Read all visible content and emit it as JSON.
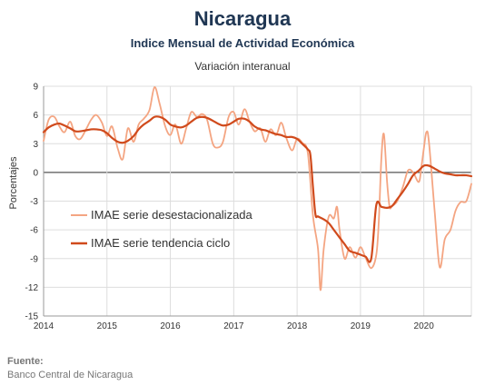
{
  "header": {
    "title": "Nicaragua",
    "subtitle": "Indice Mensual de  Actividad Económica",
    "subsubtitle": "Variación interanual"
  },
  "footer": {
    "source_label": "Fuente:",
    "source_text": "Banco Central de Nicaragua"
  },
  "colors": {
    "desestacionalizada": "#f4a582",
    "tendencia": "#d04a1c",
    "grid": "#dddddd",
    "zero_line": "#555555",
    "title": "#1f3653"
  },
  "chart_data": {
    "type": "line",
    "ylabel": "Porcentajes",
    "ylim": [
      -15,
      9
    ],
    "yticks": [
      9,
      6,
      3,
      0,
      -3,
      -6,
      -9,
      -12,
      -15
    ],
    "xlim": [
      2014.0,
      2020.75
    ],
    "xticks": [
      "2014",
      "2015",
      "2016",
      "2017",
      "2018",
      "2019",
      "2020"
    ],
    "grid": true,
    "legend_position": "left-middle",
    "series": [
      {
        "name": "IMAE serie desestacionalizada",
        "color": "#f4a582",
        "points": [
          [
            2014.0,
            3.3
          ],
          [
            2014.08,
            5.5
          ],
          [
            2014.17,
            5.8
          ],
          [
            2014.25,
            4.8
          ],
          [
            2014.33,
            4.2
          ],
          [
            2014.42,
            5.3
          ],
          [
            2014.5,
            3.8
          ],
          [
            2014.58,
            3.5
          ],
          [
            2014.67,
            4.5
          ],
          [
            2014.75,
            5.5
          ],
          [
            2014.83,
            6.0
          ],
          [
            2014.92,
            5.2
          ],
          [
            2015.0,
            3.8
          ],
          [
            2015.08,
            4.8
          ],
          [
            2015.17,
            2.5
          ],
          [
            2015.25,
            1.4
          ],
          [
            2015.33,
            4.6
          ],
          [
            2015.42,
            3.2
          ],
          [
            2015.5,
            5.0
          ],
          [
            2015.58,
            5.6
          ],
          [
            2015.67,
            6.5
          ],
          [
            2015.75,
            8.9
          ],
          [
            2015.83,
            7.2
          ],
          [
            2015.92,
            4.8
          ],
          [
            2016.0,
            3.9
          ],
          [
            2016.08,
            5.0
          ],
          [
            2016.17,
            3.0
          ],
          [
            2016.25,
            4.6
          ],
          [
            2016.33,
            6.3
          ],
          [
            2016.42,
            5.8
          ],
          [
            2016.5,
            6.1
          ],
          [
            2016.58,
            5.5
          ],
          [
            2016.67,
            3.0
          ],
          [
            2016.75,
            2.6
          ],
          [
            2016.83,
            3.2
          ],
          [
            2016.92,
            5.8
          ],
          [
            2017.0,
            6.3
          ],
          [
            2017.08,
            5.0
          ],
          [
            2017.17,
            6.6
          ],
          [
            2017.25,
            5.3
          ],
          [
            2017.33,
            4.3
          ],
          [
            2017.42,
            4.6
          ],
          [
            2017.5,
            3.2
          ],
          [
            2017.58,
            4.5
          ],
          [
            2017.67,
            3.9
          ],
          [
            2017.75,
            5.2
          ],
          [
            2017.83,
            3.6
          ],
          [
            2017.92,
            2.3
          ],
          [
            2018.0,
            3.5
          ],
          [
            2018.08,
            3.1
          ],
          [
            2018.17,
            2.0
          ],
          [
            2018.25,
            -4.5
          ],
          [
            2018.33,
            -8.0
          ],
          [
            2018.37,
            -12.3
          ],
          [
            2018.42,
            -8.0
          ],
          [
            2018.5,
            -4.6
          ],
          [
            2018.58,
            -4.8
          ],
          [
            2018.63,
            -3.6
          ],
          [
            2018.67,
            -6.0
          ],
          [
            2018.75,
            -9.0
          ],
          [
            2018.83,
            -7.8
          ],
          [
            2018.92,
            -8.9
          ],
          [
            2019.0,
            -7.8
          ],
          [
            2019.08,
            -8.9
          ],
          [
            2019.17,
            -10.0
          ],
          [
            2019.25,
            -8.6
          ],
          [
            2019.29,
            -5.0
          ],
          [
            2019.33,
            1.5
          ],
          [
            2019.37,
            4.0
          ],
          [
            2019.42,
            -1.0
          ],
          [
            2019.46,
            -3.6
          ],
          [
            2019.5,
            -3.5
          ],
          [
            2019.58,
            -3.0
          ],
          [
            2019.67,
            -1.5
          ],
          [
            2019.75,
            0.2
          ],
          [
            2019.83,
            0.0
          ],
          [
            2019.92,
            -1.0
          ],
          [
            2019.96,
            0.5
          ],
          [
            2020.0,
            2.5
          ],
          [
            2020.04,
            4.2
          ],
          [
            2020.08,
            3.2
          ],
          [
            2020.17,
            -4.0
          ],
          [
            2020.25,
            -9.9
          ],
          [
            2020.33,
            -7.0
          ],
          [
            2020.42,
            -6.0
          ],
          [
            2020.5,
            -4.0
          ],
          [
            2020.58,
            -3.1
          ],
          [
            2020.67,
            -3.0
          ],
          [
            2020.75,
            -1.2
          ]
        ]
      },
      {
        "name": "IMAE serie  tendencia ciclo",
        "color": "#d04a1c",
        "points": [
          [
            2014.0,
            4.2
          ],
          [
            2014.08,
            4.7
          ],
          [
            2014.17,
            5.0
          ],
          [
            2014.25,
            5.1
          ],
          [
            2014.33,
            4.9
          ],
          [
            2014.42,
            4.6
          ],
          [
            2014.5,
            4.3
          ],
          [
            2014.58,
            4.3
          ],
          [
            2014.67,
            4.4
          ],
          [
            2014.75,
            4.5
          ],
          [
            2014.83,
            4.5
          ],
          [
            2014.92,
            4.4
          ],
          [
            2015.0,
            4.1
          ],
          [
            2015.08,
            3.6
          ],
          [
            2015.17,
            3.2
          ],
          [
            2015.25,
            3.1
          ],
          [
            2015.33,
            3.3
          ],
          [
            2015.42,
            3.8
          ],
          [
            2015.5,
            4.5
          ],
          [
            2015.58,
            5.0
          ],
          [
            2015.67,
            5.4
          ],
          [
            2015.75,
            5.8
          ],
          [
            2015.83,
            5.8
          ],
          [
            2015.92,
            5.5
          ],
          [
            2016.0,
            5.0
          ],
          [
            2016.08,
            4.8
          ],
          [
            2016.17,
            4.7
          ],
          [
            2016.25,
            4.9
          ],
          [
            2016.33,
            5.3
          ],
          [
            2016.42,
            5.7
          ],
          [
            2016.5,
            5.8
          ],
          [
            2016.58,
            5.7
          ],
          [
            2016.67,
            5.4
          ],
          [
            2016.75,
            5.1
          ],
          [
            2016.83,
            4.9
          ],
          [
            2016.92,
            5.0
          ],
          [
            2017.0,
            5.3
          ],
          [
            2017.08,
            5.6
          ],
          [
            2017.17,
            5.6
          ],
          [
            2017.25,
            5.3
          ],
          [
            2017.33,
            4.8
          ],
          [
            2017.42,
            4.5
          ],
          [
            2017.5,
            4.4
          ],
          [
            2017.58,
            4.2
          ],
          [
            2017.67,
            4.0
          ],
          [
            2017.75,
            3.9
          ],
          [
            2017.83,
            3.7
          ],
          [
            2017.92,
            3.7
          ],
          [
            2018.0,
            3.5
          ],
          [
            2018.08,
            3.0
          ],
          [
            2018.17,
            2.4
          ],
          [
            2018.21,
            1.8
          ],
          [
            2018.25,
            -1.5
          ],
          [
            2018.29,
            -4.4
          ],
          [
            2018.33,
            -4.6
          ],
          [
            2018.42,
            -4.9
          ],
          [
            2018.5,
            -5.3
          ],
          [
            2018.58,
            -6.0
          ],
          [
            2018.67,
            -6.8
          ],
          [
            2018.75,
            -7.5
          ],
          [
            2018.83,
            -8.2
          ],
          [
            2018.92,
            -8.4
          ],
          [
            2019.0,
            -8.6
          ],
          [
            2019.08,
            -8.8
          ],
          [
            2019.17,
            -9.0
          ],
          [
            2019.25,
            -3.4
          ],
          [
            2019.33,
            -3.6
          ],
          [
            2019.42,
            -3.7
          ],
          [
            2019.5,
            -3.5
          ],
          [
            2019.58,
            -2.8
          ],
          [
            2019.67,
            -2.0
          ],
          [
            2019.75,
            -1.2
          ],
          [
            2019.83,
            -0.3
          ],
          [
            2019.92,
            0.2
          ],
          [
            2020.0,
            0.7
          ],
          [
            2020.08,
            0.7
          ],
          [
            2020.17,
            0.4
          ],
          [
            2020.25,
            0.1
          ],
          [
            2020.33,
            -0.1
          ],
          [
            2020.42,
            -0.2
          ],
          [
            2020.5,
            -0.3
          ],
          [
            2020.58,
            -0.3
          ],
          [
            2020.67,
            -0.3
          ],
          [
            2020.75,
            -0.4
          ]
        ]
      }
    ]
  }
}
